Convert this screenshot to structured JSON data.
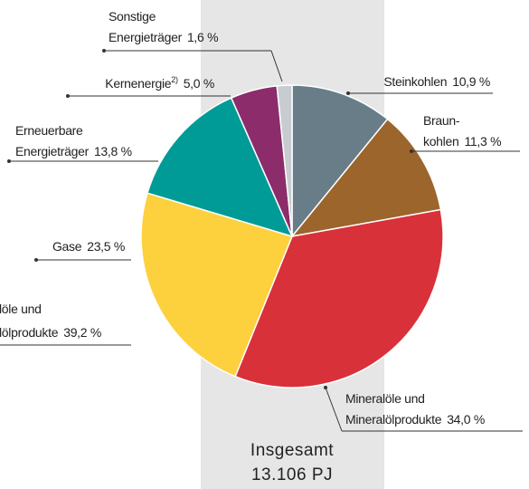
{
  "chart_data": {
    "type": "pie",
    "categories": [
      [
        "Steinkohlen"
      ],
      [
        "Braun-",
        "kohlen"
      ],
      [
        "Mineralöle und",
        "Mineralölprodukte"
      ],
      [
        "Gase"
      ],
      [
        "Erneuerbare",
        "Energieträger"
      ],
      [
        "Kernenergie"
      ],
      [
        "Sonstige",
        "Energieträger"
      ]
    ],
    "footnote_marks": [
      null,
      null,
      null,
      null,
      null,
      "2)",
      null
    ],
    "values": [
      10.9,
      11.3,
      34.0,
      23.5,
      13.8,
      5.0,
      1.6
    ],
    "value_labels": [
      "10,9 %",
      "11,3 %",
      "34,0 %",
      "23,5 %",
      "13,8 %",
      "5,0 %",
      "1,6 %"
    ],
    "colors": [
      "#687d87",
      "#9c652c",
      "#d8313a",
      "#fdd03e",
      "#009b96",
      "#8c2c6b",
      "#c7ccd0"
    ],
    "total_label": [
      "Insgesamt",
      "13.106 PJ"
    ],
    "annotations": [
      {
        "lines": [
          "löle und",
          "lölprodukte"
        ],
        "value_label": "39,2 %"
      }
    ]
  }
}
